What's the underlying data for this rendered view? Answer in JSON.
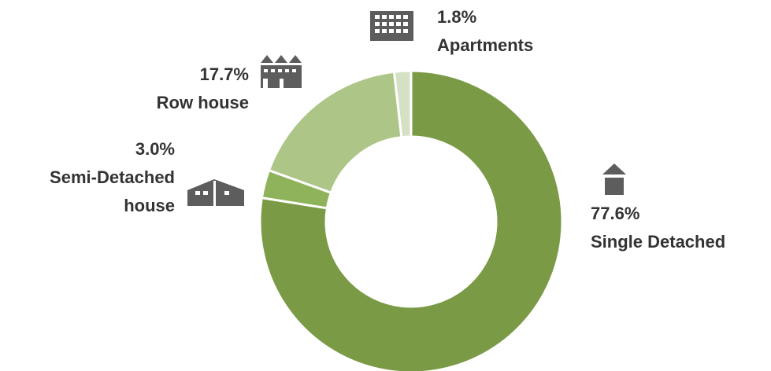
{
  "chart_data": {
    "type": "donut",
    "categories": [
      "Single Detached",
      "Semi-Detached house",
      "Row house",
      "Apartments"
    ],
    "values": [
      77.6,
      3.0,
      17.7,
      1.8
    ],
    "value_labels": [
      "77.6%",
      "3.0%",
      "17.7%",
      "1.8%"
    ],
    "colors": [
      "#7a9a45",
      "#8fb35a",
      "#adc688",
      "#d5e0c5"
    ]
  }
}
